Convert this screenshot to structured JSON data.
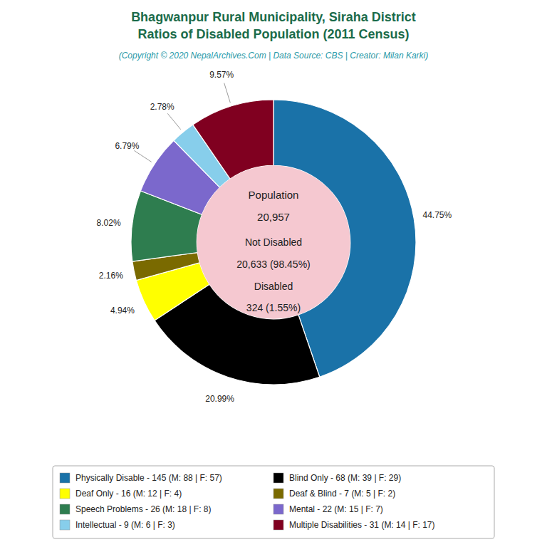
{
  "chart_data": {
    "type": "donut",
    "title": [
      "Bhagwanpur Rural Municipality, Siraha District",
      "Ratios of Disabled Population (2011 Census)"
    ],
    "subtitle": "(Copyright © 2020 NepalArchives.Com | Data Source: CBS | Creator: Milan Karki)",
    "categories": [
      "Physically Disable - 145 (M: 88 | F: 57)",
      "Blind Only - 68 (M: 39 | F: 29)",
      "Deaf Only - 16 (M: 12 | F: 4)",
      "Deaf & Blind - 7 (M: 5 | F: 2)",
      "Speech Problems - 26 (M: 18 | F: 8)",
      "Mental - 22 (M: 15 | F: 7)",
      "Intellectual - 9 (M: 6 | F: 3)",
      "Multiple Disabilities - 31 (M: 14 | F: 17)"
    ],
    "values": [
      44.75,
      20.99,
      4.94,
      2.16,
      8.02,
      6.79,
      2.78,
      9.57
    ],
    "value_labels": [
      "44.75%",
      "20.99%",
      "4.94%",
      "2.16%",
      "8.02%",
      "6.79%",
      "2.78%",
      "9.57%"
    ],
    "colors": [
      "#1a72a8",
      "#000000",
      "#ffff00",
      "#7a6a00",
      "#2e7d4f",
      "#7b68cc",
      "#87ceeb",
      "#800020"
    ],
    "data_labels": true,
    "legend": "bottom",
    "annotations": [
      "Population",
      "20,957",
      "Not Disabled",
      "20,633 (98.45%)",
      "Disabled",
      "324 (1.55%)"
    ]
  }
}
